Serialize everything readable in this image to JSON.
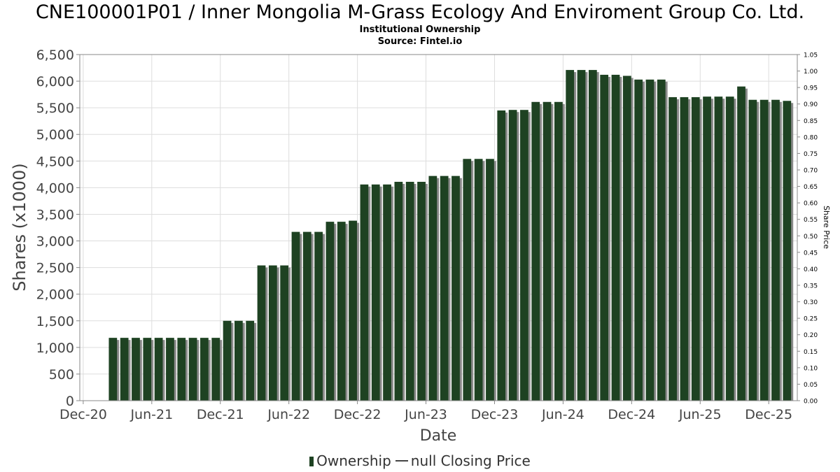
{
  "chart_data": {
    "type": "bar",
    "title": "CNE100001P01 / Inner Mongolia M-Grass Ecology And Enviroment Group Co. Ltd.",
    "subtitle_1": "Institutional Ownership",
    "subtitle_2": "Source: Fintel.io",
    "xlabel": "Date",
    "ylabel": "Shares (x1000)",
    "y2label": "Share Price",
    "ylim": [
      0,
      6500
    ],
    "y_ticks": [
      0,
      500,
      1000,
      1500,
      2000,
      2500,
      3000,
      3500,
      4000,
      4500,
      5000,
      5500,
      6000,
      6500
    ],
    "y_tick_labels": [
      "0",
      "500",
      "1,000",
      "1,500",
      "2,000",
      "2,500",
      "3,000",
      "3,500",
      "4,000",
      "4,500",
      "5,000",
      "5,500",
      "6,000",
      "6,500"
    ],
    "y2lim": [
      0,
      1.05
    ],
    "y2_ticks": [
      "0.00",
      "0.05",
      "0.10",
      "0.15",
      "0.20",
      "0.25",
      "0.30",
      "0.35",
      "0.40",
      "0.45",
      "0.50",
      "0.55",
      "0.60",
      "0.65",
      "0.70",
      "0.75",
      "0.80",
      "0.85",
      "0.90",
      "0.95",
      "1.00",
      "1.05"
    ],
    "x_range_months": [
      -0.3,
      62.5
    ],
    "x_ticks": [
      {
        "label": "Dec-20",
        "month": 0
      },
      {
        "label": "Jun-21",
        "month": 6
      },
      {
        "label": "Dec-21",
        "month": 12
      },
      {
        "label": "Jun-22",
        "month": 18
      },
      {
        "label": "Dec-22",
        "month": 24
      },
      {
        "label": "Jun-23",
        "month": 30
      },
      {
        "label": "Dec-23",
        "month": 36
      },
      {
        "label": "Jun-24",
        "month": 42
      },
      {
        "label": "Dec-24",
        "month": 48
      },
      {
        "label": "Jun-25",
        "month": 54
      },
      {
        "label": "Dec-25",
        "month": 60
      }
    ],
    "series": [
      {
        "name": "Ownership",
        "color": "#1e4222",
        "bar_start_month": 2.6,
        "bar_step_months": 1,
        "values": [
          1180,
          1180,
          1180,
          1180,
          1180,
          1180,
          1180,
          1180,
          1180,
          1180,
          1500,
          1500,
          1500,
          2540,
          2540,
          2540,
          3170,
          3170,
          3170,
          3360,
          3360,
          3380,
          4060,
          4060,
          4060,
          4110,
          4110,
          4110,
          4220,
          4220,
          4220,
          4540,
          4540,
          4540,
          5450,
          5460,
          5460,
          5610,
          5610,
          5610,
          6210,
          6210,
          6210,
          6120,
          6120,
          6100,
          6030,
          6030,
          6030,
          5700,
          5700,
          5700,
          5710,
          5710,
          5710,
          5900,
          5650,
          5650,
          5650,
          5630
        ]
      },
      {
        "name": "null Closing Price",
        "color": "#444444",
        "values": []
      }
    ],
    "legend": {
      "position": "bottom",
      "entries": [
        "Ownership",
        "null Closing Price"
      ]
    },
    "grid": true
  }
}
